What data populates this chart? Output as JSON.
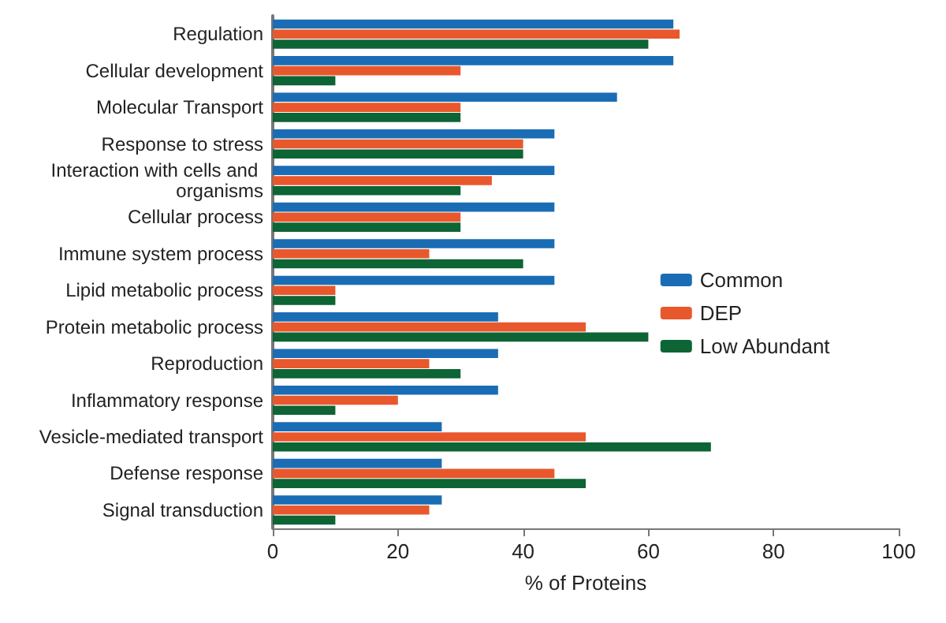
{
  "chart_data": {
    "type": "bar",
    "orientation": "horizontal",
    "xlabel": "% of Proteins",
    "categories": [
      "Regulation",
      "Cellular development",
      "Molecular Transport",
      "Response to stress",
      "Interaction with cells and organisms",
      "Cellular process",
      "Immune system process",
      "Lipid metabolic process",
      "Protein metabolic process",
      "Reproduction",
      "Inflammatory response",
      "Vesicle-mediated transport",
      "Defense response",
      "Signal transduction"
    ],
    "series": [
      {
        "name": "Common",
        "color": "#1a6db5",
        "values": [
          64,
          64,
          55,
          45,
          45,
          45,
          45,
          45,
          36,
          36,
          36,
          27,
          27,
          27
        ]
      },
      {
        "name": "DEP",
        "color": "#e8582c",
        "values": [
          65,
          30,
          30,
          40,
          35,
          30,
          25,
          10,
          50,
          25,
          20,
          50,
          45,
          25
        ]
      },
      {
        "name": "Low Abundant",
        "color": "#0d6434",
        "values": [
          60,
          10,
          30,
          40,
          30,
          30,
          40,
          10,
          60,
          30,
          10,
          70,
          50,
          10
        ]
      }
    ],
    "xlim": [
      0,
      100
    ],
    "xticks": [
      0,
      20,
      40,
      60,
      80,
      100
    ],
    "grid": false,
    "legend": "right"
  }
}
